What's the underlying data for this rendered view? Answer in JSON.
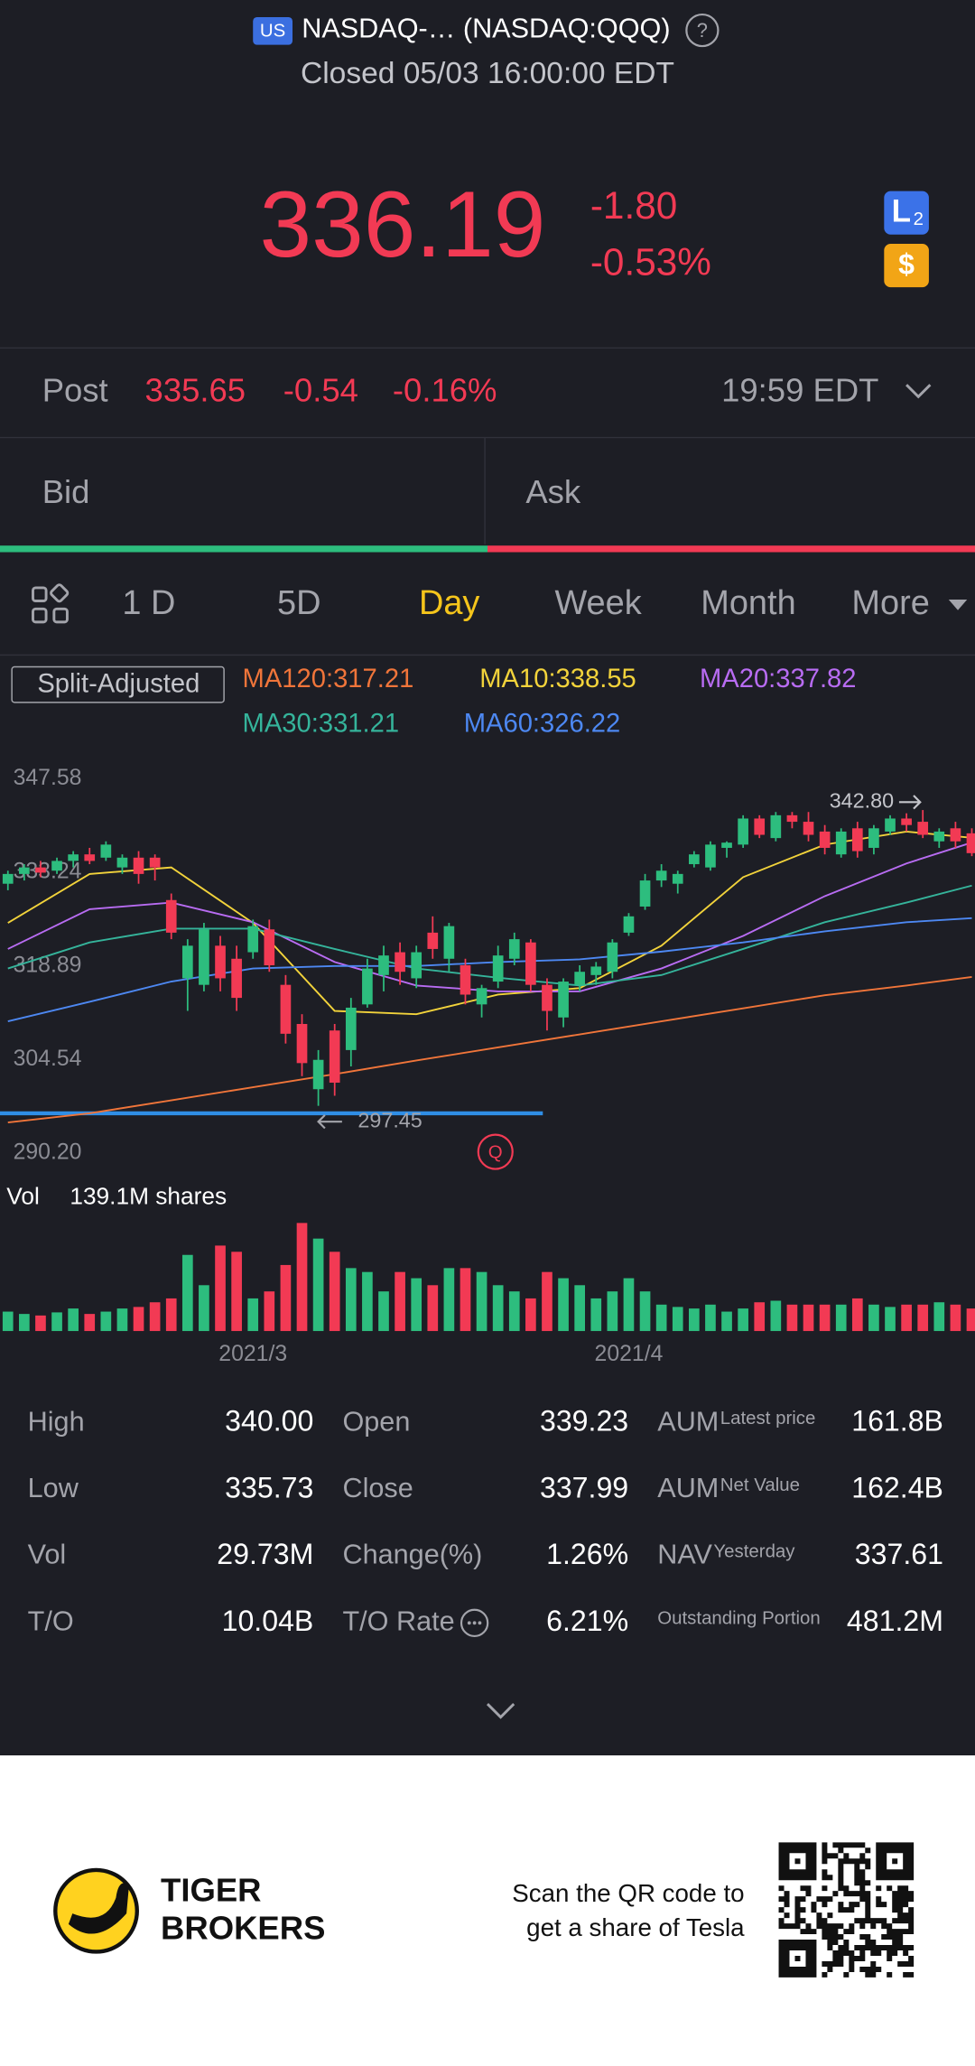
{
  "header": {
    "exchange_badge": "US",
    "name": "NASDAQ-… (NASDAQ:QQQ)",
    "help": "?",
    "status": "Closed 05/03 16:00:00 EDT"
  },
  "quote": {
    "price": "336.19",
    "change": "-1.80",
    "change_pct": "-0.53%",
    "level_badge": [
      "L",
      "2"
    ],
    "currency_badge": "$"
  },
  "post_market": {
    "label": "Post",
    "price": "335.65",
    "change": "-0.54",
    "change_pct": "-0.16%",
    "time": "19:59 EDT"
  },
  "bid_ask": {
    "bid": "Bid",
    "ask": "Ask"
  },
  "tabs": {
    "items": [
      "1 D",
      "5D",
      "Day",
      "Week",
      "Month",
      "More"
    ],
    "active": 2
  },
  "chart_data": {
    "type": "candlestick",
    "split_label": "Split-Adjusted",
    "categories": [
      null,
      null,
      null,
      null,
      null,
      null,
      null,
      null,
      null,
      null,
      null,
      null,
      null,
      null,
      null,
      "2021/3",
      null,
      null,
      null,
      null,
      null,
      null,
      null,
      null,
      null,
      null,
      null,
      null,
      null,
      null,
      null,
      null,
      null,
      null,
      null,
      null,
      null,
      null,
      "2021/4",
      null,
      null,
      null,
      null,
      null,
      null,
      null,
      null,
      null,
      null,
      null,
      null,
      null,
      null,
      null,
      null,
      null,
      null,
      null,
      null,
      null
    ],
    "open": [
      331.5,
      333,
      334,
      333.5,
      335,
      336,
      335.5,
      334,
      335.5,
      335.5,
      329,
      317,
      316,
      322,
      320,
      321,
      324.5,
      316,
      310,
      300,
      309,
      306,
      313,
      317.5,
      321,
      317,
      324,
      320,
      319,
      313,
      316.5,
      320,
      322.5,
      316,
      311,
      316,
      317.5,
      318,
      324,
      328,
      332,
      331.5,
      334.5,
      334,
      337,
      337.5,
      341.5,
      338.5,
      342,
      341,
      339.5,
      336,
      340,
      337,
      339.5,
      341.5,
      341,
      338,
      340,
      339.23
    ],
    "high": [
      333.5,
      334.5,
      335,
      335.5,
      336.5,
      337,
      338,
      336,
      336.5,
      336,
      330,
      323,
      325.5,
      323.5,
      322,
      326,
      326,
      317.5,
      311.5,
      306,
      310,
      314,
      320,
      322,
      322.5,
      322,
      326.5,
      325.5,
      320,
      316,
      322,
      324,
      323,
      317,
      317,
      319,
      319.5,
      323,
      327,
      333,
      334.5,
      333.5,
      336.5,
      338,
      338,
      342,
      342,
      342.5,
      342.5,
      342.5,
      340.5,
      340,
      341,
      340.5,
      342,
      342.3,
      342.8,
      340,
      341,
      340
    ],
    "low": [
      330.5,
      332,
      332.5,
      333,
      334,
      334.5,
      335,
      333,
      331.5,
      332,
      323,
      312,
      315,
      315,
      312,
      320,
      318,
      307,
      302,
      297.45,
      299,
      303.5,
      312.5,
      315,
      316,
      315.5,
      320,
      318,
      313,
      311,
      315.5,
      319,
      315,
      309,
      309.5,
      315,
      316,
      317,
      323.5,
      327.5,
      331,
      330,
      334,
      333.5,
      335.5,
      337,
      338.5,
      338,
      340,
      338,
      336,
      335.5,
      335.5,
      336,
      339,
      339.5,
      338.5,
      337,
      337,
      335.73
    ],
    "close": [
      333,
      334,
      333.2,
      335,
      336,
      335,
      337.5,
      335.5,
      333,
      334,
      324,
      322,
      324.5,
      317,
      314,
      325,
      319,
      308.5,
      304,
      304.5,
      301,
      312.5,
      318.5,
      320.5,
      318,
      321,
      321.5,
      325,
      314.5,
      315.5,
      320.5,
      323,
      316,
      312,
      316.5,
      318,
      318.8,
      322.5,
      326.5,
      332,
      333.5,
      333,
      336,
      337.5,
      337.8,
      341.5,
      339,
      342,
      341,
      339,
      337,
      339.5,
      336.5,
      340,
      341.5,
      340.5,
      339,
      339.5,
      338,
      336.19
    ],
    "up_color": "#2dbd7e",
    "down_color": "#f23a54",
    "ylim": [
      290.2,
      347.58
    ],
    "yticks": [
      347.58,
      333.24,
      318.89,
      304.54,
      {
        "value": 290.2,
        "label": "290.20"
      }
    ],
    "grid": false,
    "series": [
      {
        "name": "MA120:317.21",
        "color": "#f0753a",
        "x": [
          0,
          5,
          10,
          15,
          20,
          25,
          30,
          35,
          40,
          45,
          50,
          55,
          59
        ],
        "values": [
          294.9,
          296.3,
          298.3,
          300.3,
          302.3,
          304.4,
          306.4,
          308.4,
          310.4,
          312.4,
          314.4,
          315.9,
          317.21
        ]
      },
      {
        "name": "MA10:338.55",
        "color": "#f2d33b",
        "x": [
          0,
          5,
          10,
          15,
          20,
          25,
          30,
          35,
          40,
          45,
          50,
          55,
          59
        ],
        "values": [
          325.5,
          333,
          334,
          325.5,
          312,
          311.5,
          314.5,
          315.5,
          322,
          332.5,
          337.5,
          339.5,
          338.55
        ]
      },
      {
        "name": "MA20:337.82",
        "color": "#b86cf2",
        "x": [
          0,
          5,
          10,
          15,
          20,
          25,
          30,
          35,
          40,
          45,
          50,
          55,
          59
        ],
        "values": [
          321.5,
          327.6,
          328.6,
          325.6,
          319.5,
          315.9,
          315,
          315,
          318.5,
          323.5,
          329.6,
          334.6,
          337.82
        ]
      },
      {
        "name": "MA30:331.21",
        "color": "#35b49b",
        "x": [
          0,
          5,
          10,
          15,
          20,
          25,
          30,
          35,
          40,
          45,
          50,
          55,
          59
        ],
        "values": [
          318.5,
          322.5,
          324.6,
          324.6,
          321.5,
          318.5,
          317.1,
          315.9,
          317.5,
          321.5,
          325.6,
          328.6,
          331.21
        ]
      },
      {
        "name": "MA60:326.22",
        "color": "#4d88f2",
        "x": [
          0,
          5,
          10,
          15,
          20,
          25,
          30,
          35,
          40,
          45,
          50,
          55,
          59
        ],
        "values": [
          310.4,
          313.4,
          316.5,
          318.5,
          318.9,
          318.9,
          319.5,
          319.9,
          321.1,
          322.5,
          324.2,
          325.6,
          326.22
        ]
      }
    ],
    "high_marker": {
      "value": 342.8,
      "label": "342.80"
    },
    "low_marker": 297.45,
    "event_marker": "Q",
    "support_line": 296.3,
    "support_color": "#2f8ee6",
    "volume": {
      "label": "Vol",
      "scale": {
        "value": 139.1,
        "label": "139.1M shares"
      },
      "values": [
        25,
        22,
        20,
        24,
        29,
        22,
        25,
        29,
        31,
        37,
        42,
        98,
        59,
        110,
        102,
        42,
        51,
        85,
        139.1,
        119,
        102,
        81,
        76,
        51,
        76,
        68,
        59,
        81,
        81,
        76,
        59,
        51,
        42,
        76,
        68,
        59,
        42,
        51,
        68,
        51,
        34,
        31,
        29,
        34,
        25,
        29,
        37,
        39,
        34,
        34,
        34,
        34,
        42,
        34,
        31,
        34,
        34,
        37,
        34,
        29
      ]
    }
  },
  "stats": {
    "rows": [
      [
        {
          "label": "High",
          "value": "340.00"
        },
        {
          "label": "Open",
          "value": "339.23"
        },
        {
          "label": "AUM",
          "sub": "Latest price",
          "value": "161.8B"
        }
      ],
      [
        {
          "label": "Low",
          "value": "335.73"
        },
        {
          "label": "Close",
          "value": "337.99"
        },
        {
          "label": "AUM",
          "sub": "Net Value",
          "value": "162.4B"
        }
      ],
      [
        {
          "label": "Vol",
          "value": "29.73M"
        },
        {
          "label": "Change(%)",
          "value": "1.26%"
        },
        {
          "label": "NAV",
          "sub": "Yesterday",
          "value": "337.61"
        }
      ],
      [
        {
          "label": "T/O",
          "value": "10.04B"
        },
        {
          "label": "T/O Rate",
          "value": "6.21%"
        },
        {
          "sub": "Outstanding Portion",
          "value": "481.2M"
        }
      ]
    ]
  },
  "footer": {
    "brand": [
      "TIGER",
      "BROKERS"
    ],
    "message": [
      "Scan the QR code to",
      "get a share of Tesla"
    ]
  }
}
